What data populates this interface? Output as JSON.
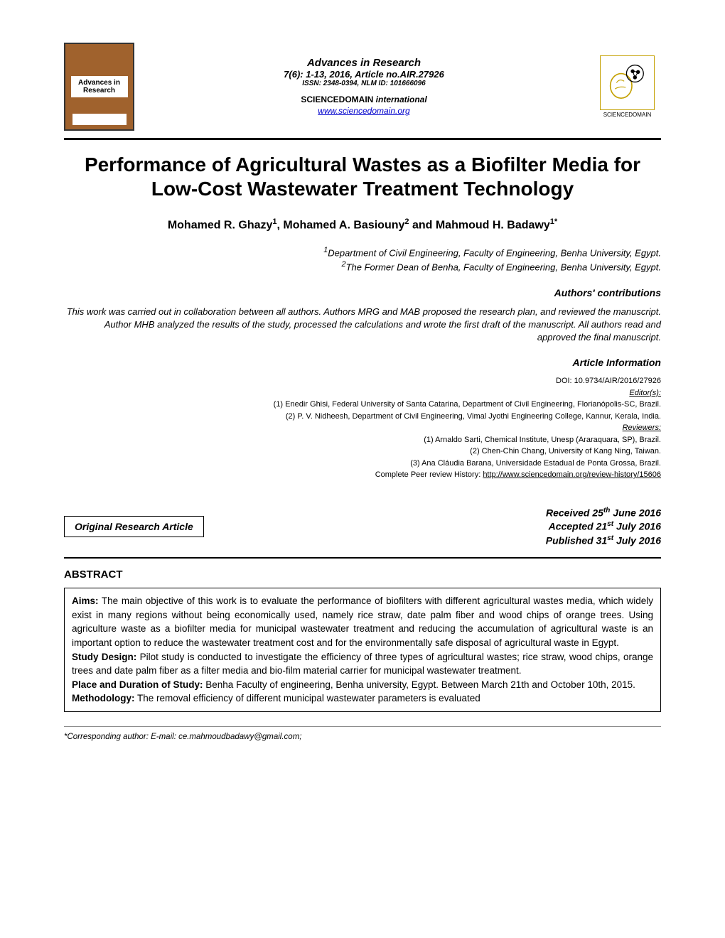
{
  "header": {
    "journal_name": "Advances in Research",
    "issue_line": "7(6): 1-13, 2016, Article no.AIR.27926",
    "issn_line": "ISSN: 2348-0394, NLM ID: 101666096",
    "publisher_name": "SCIENCEDOMAIN ",
    "publisher_suffix": "international",
    "publisher_url": "www.sciencedomain.org",
    "left_thumb_text": "Advances in Research",
    "right_thumb_caption": "SCIENCEDOMAIN"
  },
  "title": "Performance of Agricultural Wastes as a Biofilter Media for Low-Cost Wastewater Treatment Technology",
  "authors_html": "Mohamed R. Ghazy<sup>1</sup>, Mohamed A. Basiouny<sup>2</sup> and Mahmoud H. Badawy<sup>1*</sup>",
  "affiliations": {
    "a1": "Department of Civil Engineering, Faculty of Engineering, Benha University, Egypt.",
    "a2": "The Former Dean of Benha, Faculty of Engineering, Benha University, Egypt."
  },
  "contributions_label": "Authors' contributions",
  "contributions_text": "This work was carried out in collaboration between all authors. Authors MRG and MAB proposed the research plan, and reviewed the manuscript. Author MHB analyzed the results of the study, processed the calculations and wrote the first draft of the manuscript. All authors read and approved the final manuscript.",
  "article_info_label": "Article Information",
  "article_info": {
    "doi": "DOI: 10.9734/AIR/2016/27926",
    "editors_label": "Editor(s):",
    "editors": [
      "(1) Enedir Ghisi, Federal University of Santa Catarina, Department of Civil Engineering, Florianópolis-SC, Brazil.",
      "(2) P. V. Nidheesh, Department of Civil Engineering, Vimal Jyothi Engineering College, Kannur, Kerala, India."
    ],
    "reviewers_label": "Reviewers:",
    "reviewers": [
      "(1) Arnaldo  Sarti, Chemical Institute, Unesp (Araraquara, SP), Brazil.",
      "(2) Chen-Chin Chang, University of Kang Ning, Taiwan.",
      "(3) Ana Cláudia Barana, Universidade Estadual de Ponta Grossa, Brazil."
    ],
    "peer_review_prefix": "Complete Peer review History: ",
    "peer_review_url": "http://www.sciencedomain.org/review-history/15606"
  },
  "article_type": "Original Research Article",
  "dates": {
    "received": "Received 25<sup>th</sup> June 2016",
    "accepted": "Accepted 21<sup>st</sup> July 2016",
    "published": "Published 31<sup>st</sup> July 2016"
  },
  "abstract_heading": "ABSTRACT",
  "abstract": {
    "aims_label": "Aims:",
    "aims": " The main objective of this work is to evaluate the performance of biofilters with different agricultural wastes media, which widely exist in many regions without being economically used, namely rice straw, date palm fiber and wood chips of orange trees. Using agriculture waste as a biofilter media for municipal wastewater treatment and reducing the accumulation of agricultural waste is an important option to reduce the wastewater treatment cost and for the environmentally safe disposal of agricultural waste in Egypt.",
    "design_label": "Study Design:",
    "design": "  Pilot study is conducted to investigate the efficiency of three types of agricultural wastes; rice straw, wood chips, orange trees and date palm fiber as a filter media and bio-film material carrier for municipal wastewater treatment.",
    "place_label": "Place and Duration of Study:",
    "place": " Benha Faculty of engineering, Benha university, Egypt. Between March 21th and October 10th, 2015.",
    "methodology_label": "Methodology:",
    "methodology": " The removal efficiency of different municipal wastewater parameters is evaluated"
  },
  "footer_note": "*Corresponding author: E-mail: ce.mahmoudbadawy@gmail.com;",
  "colors": {
    "link": "#0000cc",
    "thumb_bg": "#a0622d",
    "logo_border": "#c4a000",
    "rule_light": "#888888"
  }
}
